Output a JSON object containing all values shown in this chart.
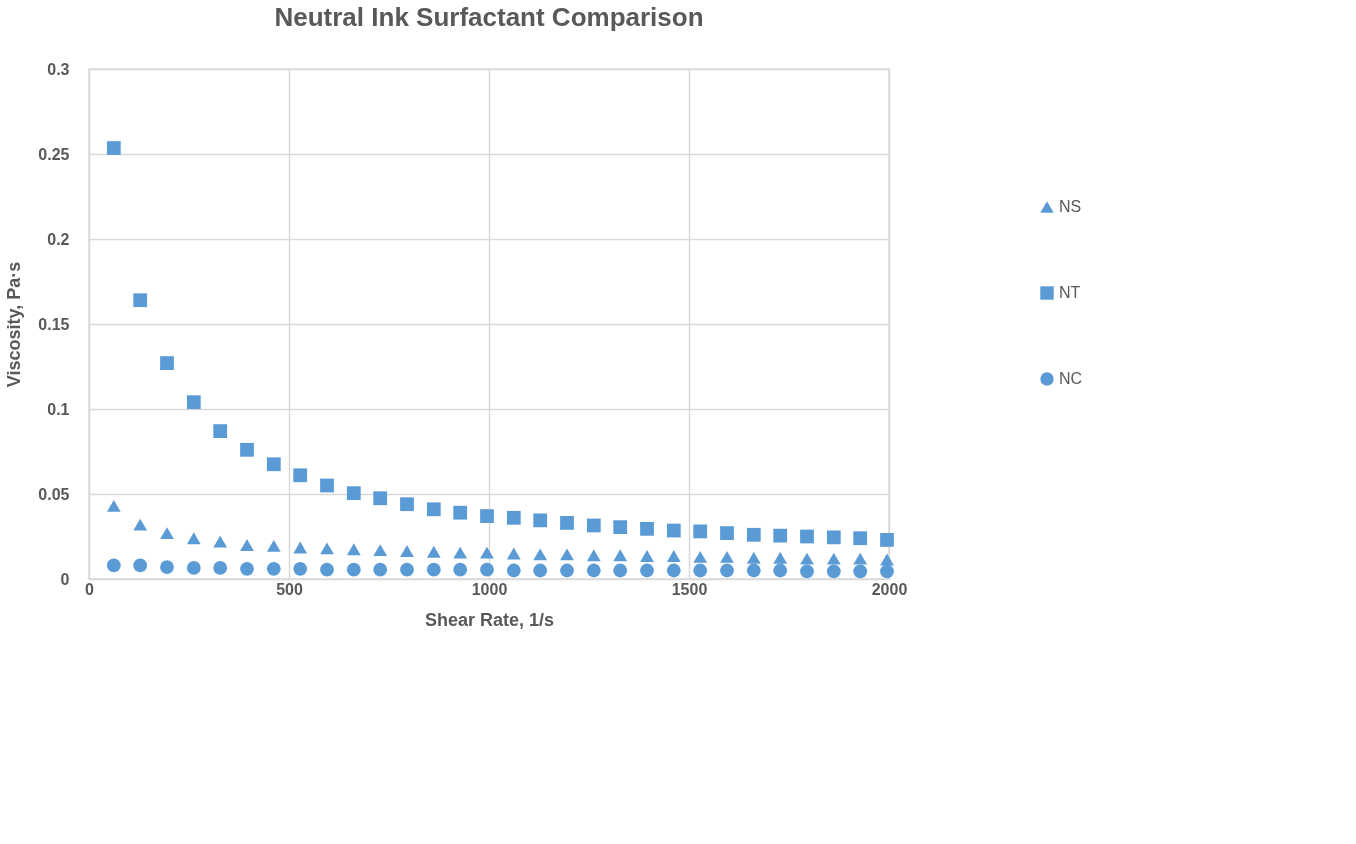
{
  "chart_data": {
    "type": "scatter",
    "title": "Neutral Ink Surfactant Comparison",
    "xlabel": "Shear Rate, 1/s",
    "ylabel": "Viscosity, Pa·s",
    "x": [
      62,
      128,
      195,
      262,
      328,
      395,
      462,
      528,
      595,
      662,
      728,
      795,
      862,
      928,
      995,
      1062,
      1128,
      1195,
      1262,
      1328,
      1395,
      1462,
      1528,
      1595,
      1662,
      1728,
      1795,
      1862,
      1928,
      1995
    ],
    "series": [
      {
        "name": "NS",
        "color": "#5b9bd5",
        "marker": "triangle",
        "values": [
          0.043,
          0.032,
          0.027,
          0.024,
          0.022,
          0.02,
          0.0195,
          0.0185,
          0.018,
          0.0175,
          0.017,
          0.0165,
          0.016,
          0.0155,
          0.0155,
          0.015,
          0.0145,
          0.0145,
          0.014,
          0.014,
          0.0135,
          0.0135,
          0.013,
          0.013,
          0.0125,
          0.0125,
          0.012,
          0.012,
          0.012,
          0.0115
        ]
      },
      {
        "name": "NT",
        "color": "#5b9bd5",
        "marker": "square",
        "values": [
          0.2535,
          0.164,
          0.127,
          0.104,
          0.087,
          0.076,
          0.0675,
          0.061,
          0.055,
          0.0505,
          0.0475,
          0.044,
          0.041,
          0.039,
          0.037,
          0.036,
          0.0345,
          0.033,
          0.0315,
          0.0305,
          0.0295,
          0.0285,
          0.028,
          0.027,
          0.026,
          0.0255,
          0.025,
          0.0245,
          0.024,
          0.023
        ]
      },
      {
        "name": "NC",
        "color": "#5b9bd5",
        "marker": "circle",
        "values": [
          0.008,
          0.008,
          0.007,
          0.0065,
          0.0065,
          0.006,
          0.006,
          0.006,
          0.0055,
          0.0055,
          0.0055,
          0.0055,
          0.0055,
          0.0055,
          0.0055,
          0.005,
          0.005,
          0.005,
          0.005,
          0.005,
          0.005,
          0.005,
          0.005,
          0.005,
          0.005,
          0.005,
          0.0045,
          0.0045,
          0.0045,
          0.0045
        ]
      }
    ],
    "xlim": [
      0,
      2000
    ],
    "xticks": [
      0,
      500,
      1000,
      1500,
      2000
    ],
    "ylim": [
      0,
      0.3
    ],
    "yticks": [
      0,
      0.05,
      0.1,
      0.15,
      0.2,
      0.25,
      0.3
    ],
    "grid": true,
    "legend": "right"
  }
}
